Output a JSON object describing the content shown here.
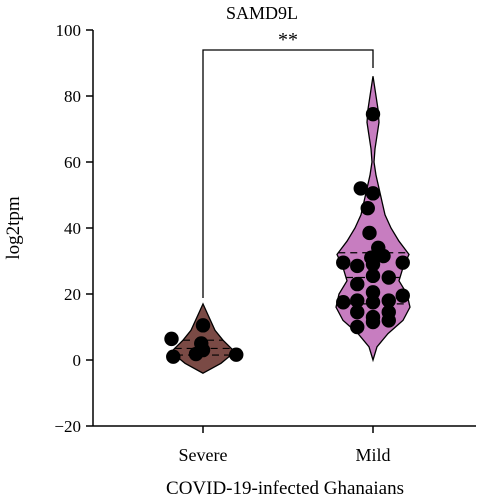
{
  "chart_data": {
    "type": "violin",
    "title": "SAMD9L",
    "xlabel": "COVID-19-infected Ghanaians",
    "ylabel": "log2tpm",
    "ylim": [
      -20,
      100
    ],
    "yticks": [
      -20,
      0,
      20,
      40,
      60,
      80,
      100
    ],
    "ytick_labels": [
      "−20",
      "0",
      "20",
      "40",
      "60",
      "80",
      "100"
    ],
    "categories": [
      "Severe",
      "Mild"
    ],
    "significance": {
      "between": [
        "Severe",
        "Mild"
      ],
      "label": "**"
    },
    "colors": {
      "Severe": "#7a4a45",
      "Mild": "#c77dc0"
    },
    "series": [
      {
        "category": "Severe",
        "quartiles": [
          1.5,
          3.5,
          6.0
        ],
        "points": [
          [
            -0.85,
            1.0
          ],
          [
            -0.2,
            1.8
          ],
          [
            0.95,
            1.6
          ],
          [
            0.0,
            3.0
          ],
          [
            -0.05,
            5.0
          ],
          [
            -0.9,
            6.4
          ],
          [
            0.0,
            10.5
          ]
        ]
      },
      {
        "category": "Mild",
        "quartiles": [
          17.0,
          25.0,
          32.5
        ],
        "points": [
          [
            0.0,
            74.5
          ],
          [
            -0.35,
            52.0
          ],
          [
            0.0,
            50.5
          ],
          [
            -0.15,
            46.0
          ],
          [
            -0.1,
            38.5
          ],
          [
            0.15,
            34.0
          ],
          [
            -0.05,
            31.0
          ],
          [
            0.3,
            31.5
          ],
          [
            -0.85,
            29.5
          ],
          [
            -0.45,
            28.5
          ],
          [
            0.0,
            29.0
          ],
          [
            0.85,
            29.5
          ],
          [
            0.0,
            25.5
          ],
          [
            0.45,
            25.0
          ],
          [
            -0.45,
            23.0
          ],
          [
            0.0,
            20.5
          ],
          [
            0.85,
            19.5
          ],
          [
            -0.85,
            17.5
          ],
          [
            -0.45,
            18.0
          ],
          [
            0.0,
            17.5
          ],
          [
            0.45,
            18.0
          ],
          [
            -0.45,
            14.5
          ],
          [
            0.45,
            14.5
          ],
          [
            0.0,
            13.0
          ],
          [
            -0.45,
            10.0
          ],
          [
            0.0,
            11.5
          ],
          [
            0.45,
            12.0
          ]
        ]
      }
    ]
  }
}
